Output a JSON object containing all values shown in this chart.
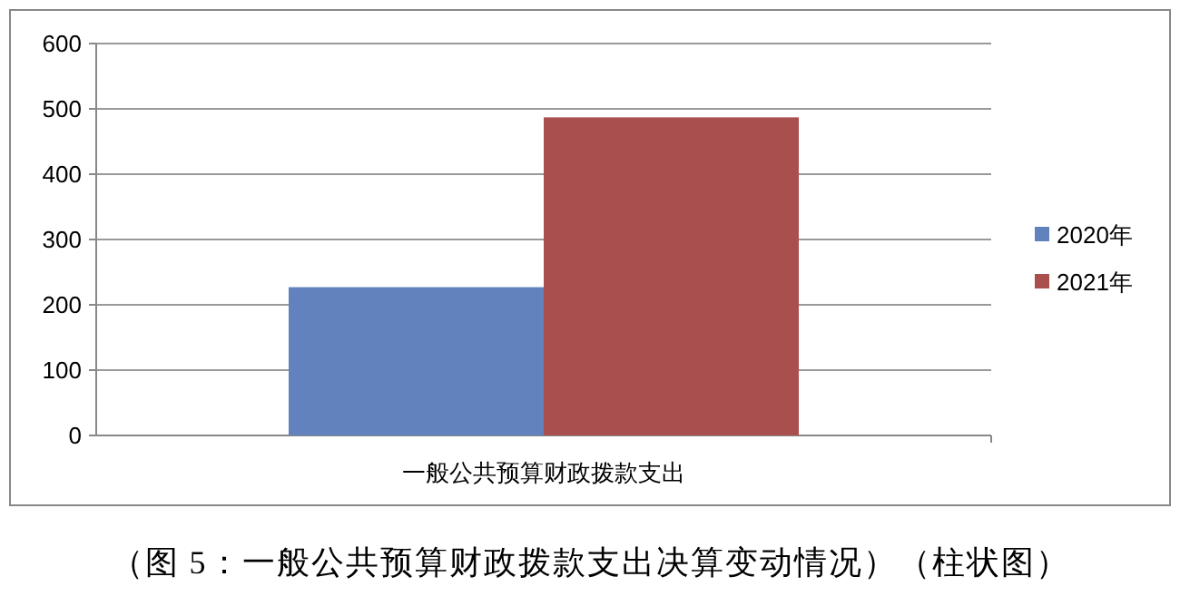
{
  "chart_data": {
    "type": "bar",
    "categories": [
      "一般公共预算财政拨款支出"
    ],
    "series": [
      {
        "name": "2020年",
        "color": "#6182bd",
        "values": [
          227
        ]
      },
      {
        "name": "2021年",
        "color": "#a9504e",
        "values": [
          487
        ]
      }
    ],
    "ylim": [
      0,
      600
    ],
    "yticks": [
      0,
      100,
      200,
      300,
      400,
      500,
      600
    ],
    "grid": "y",
    "legend": "right",
    "annotations": [
      "（图 5：一般公共预算财政拨款支出决算变动情况）（柱状图）"
    ]
  }
}
